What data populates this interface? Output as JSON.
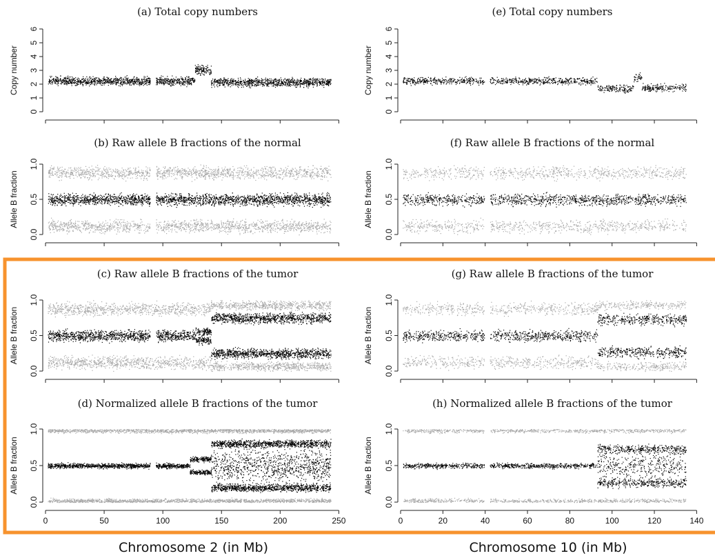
{
  "figure_colors": {
    "highlight": "#f7932e",
    "dark_points": "#000000",
    "light_points": "#a8a8a8"
  },
  "chart_data": [
    {
      "id": "a",
      "type": "scatter",
      "title": "(a) Total copy numbers",
      "ylabel": "Copy number",
      "ylim": [
        0,
        6
      ],
      "yticks": [
        "0",
        "1",
        "2",
        "3",
        "4",
        "5",
        "6"
      ],
      "xlim": [
        0,
        243
      ],
      "xticks": [],
      "highlighted": false,
      "regions": [
        {
          "x": [
            2,
            89
          ],
          "y": 2.25,
          "spread": 0.35,
          "tone": "dark"
        },
        {
          "x": [
            94,
            127
          ],
          "y": 2.25,
          "spread": 0.35,
          "tone": "dark"
        },
        {
          "x": [
            127,
            141
          ],
          "y": 3.0,
          "spread": 0.45,
          "tone": "dark"
        },
        {
          "x": [
            141,
            243
          ],
          "y": 2.15,
          "spread": 0.35,
          "tone": "dark"
        }
      ]
    },
    {
      "id": "e",
      "type": "scatter",
      "title": "(e) Total copy numbers",
      "ylabel": "Copy number",
      "ylim": [
        0,
        6
      ],
      "yticks": [
        "0",
        "1",
        "2",
        "3",
        "4",
        "5",
        "6"
      ],
      "xlim": [
        0,
        135
      ],
      "xticks": [],
      "highlighted": false,
      "gaps": [
        [
          39.5,
          42.2
        ]
      ],
      "regions": [
        {
          "x": [
            1,
            93
          ],
          "y": 2.25,
          "spread": 0.3,
          "tone": "dark"
        },
        {
          "x": [
            93,
            110
          ],
          "y": 1.7,
          "spread": 0.3,
          "tone": "dark"
        },
        {
          "x": [
            110,
            114
          ],
          "y": 2.5,
          "spread": 0.35,
          "tone": "dark"
        },
        {
          "x": [
            114,
            135
          ],
          "y": 1.75,
          "spread": 0.3,
          "tone": "dark"
        }
      ]
    },
    {
      "id": "b",
      "type": "scatter",
      "title": "(b) Raw allele B fractions of the normal",
      "ylabel": "Allele B fraction",
      "ylim": [
        0,
        1
      ],
      "yticks": [
        "0.0",
        "0.5",
        "1.0"
      ],
      "xlim": [
        0,
        243
      ],
      "xticks": [],
      "highlighted": false,
      "regions": [
        {
          "x": [
            2,
            89
          ],
          "y": 0.12,
          "spread": 0.1,
          "tone": "light"
        },
        {
          "x": [
            2,
            89
          ],
          "y": 0.88,
          "spread": 0.1,
          "tone": "light"
        },
        {
          "x": [
            2,
            89
          ],
          "y": 0.5,
          "spread": 0.09,
          "tone": "dark"
        },
        {
          "x": [
            94,
            243
          ],
          "y": 0.12,
          "spread": 0.1,
          "tone": "light"
        },
        {
          "x": [
            94,
            243
          ],
          "y": 0.88,
          "spread": 0.1,
          "tone": "light"
        },
        {
          "x": [
            94,
            243
          ],
          "y": 0.5,
          "spread": 0.09,
          "tone": "dark"
        }
      ]
    },
    {
      "id": "f",
      "type": "scatter",
      "title": "(f) Raw allele B fractions of the normal",
      "ylabel": "Allele B fraction",
      "ylim": [
        0,
        1
      ],
      "yticks": [
        "0.0",
        "0.5",
        "1.0"
      ],
      "xlim": [
        0,
        135
      ],
      "xticks": [],
      "highlighted": false,
      "gaps": [
        [
          39.5,
          42.2
        ]
      ],
      "regions": [
        {
          "x": [
            1,
            135
          ],
          "y": 0.12,
          "spread": 0.1,
          "tone": "light"
        },
        {
          "x": [
            1,
            135
          ],
          "y": 0.88,
          "spread": 0.1,
          "tone": "light"
        },
        {
          "x": [
            1,
            135
          ],
          "y": 0.5,
          "spread": 0.09,
          "tone": "dark"
        }
      ]
    },
    {
      "id": "c",
      "type": "scatter",
      "title": "(c) Raw allele B fractions of the tumor",
      "ylabel": "Allele B fraction",
      "ylim": [
        0,
        1
      ],
      "yticks": [
        "0.0",
        "0.5",
        "1.0"
      ],
      "xlim": [
        0,
        243
      ],
      "xticks": [],
      "highlighted": true,
      "regions": [
        {
          "x": [
            2,
            141
          ],
          "y": 0.12,
          "spread": 0.1,
          "tone": "light"
        },
        {
          "x": [
            2,
            141
          ],
          "y": 0.88,
          "spread": 0.1,
          "tone": "light"
        },
        {
          "x": [
            2,
            89
          ],
          "y": 0.5,
          "spread": 0.09,
          "tone": "dark"
        },
        {
          "x": [
            94,
            128
          ],
          "y": 0.5,
          "spread": 0.09,
          "tone": "dark"
        },
        {
          "x": [
            128,
            141
          ],
          "y": 0.44,
          "spread": 0.06,
          "tone": "dark"
        },
        {
          "x": [
            128,
            141
          ],
          "y": 0.56,
          "spread": 0.06,
          "tone": "dark"
        },
        {
          "x": [
            141,
            243
          ],
          "y": 0.07,
          "spread": 0.07,
          "tone": "light"
        },
        {
          "x": [
            141,
            243
          ],
          "y": 0.93,
          "spread": 0.07,
          "tone": "light"
        },
        {
          "x": [
            141,
            243
          ],
          "y": 0.25,
          "spread": 0.08,
          "tone": "dark"
        },
        {
          "x": [
            141,
            243
          ],
          "y": 0.75,
          "spread": 0.08,
          "tone": "dark"
        }
      ]
    },
    {
      "id": "g",
      "type": "scatter",
      "title": "(g) Raw allele B fractions of the tumor",
      "ylabel": "Allele B fraction",
      "ylim": [
        0,
        1
      ],
      "yticks": [
        "0.0",
        "0.5",
        "1.0"
      ],
      "xlim": [
        0,
        135
      ],
      "xticks": [],
      "highlighted": true,
      "gaps": [
        [
          39.5,
          42.2
        ]
      ],
      "regions": [
        {
          "x": [
            1,
            93
          ],
          "y": 0.12,
          "spread": 0.1,
          "tone": "light"
        },
        {
          "x": [
            1,
            93
          ],
          "y": 0.88,
          "spread": 0.1,
          "tone": "light"
        },
        {
          "x": [
            1,
            93
          ],
          "y": 0.5,
          "spread": 0.09,
          "tone": "dark"
        },
        {
          "x": [
            93,
            135
          ],
          "y": 0.07,
          "spread": 0.07,
          "tone": "light"
        },
        {
          "x": [
            93,
            135
          ],
          "y": 0.93,
          "spread": 0.07,
          "tone": "light"
        },
        {
          "x": [
            93,
            135
          ],
          "y": 0.27,
          "spread": 0.09,
          "tone": "dark"
        },
        {
          "x": [
            93,
            135
          ],
          "y": 0.73,
          "spread": 0.09,
          "tone": "dark"
        }
      ]
    },
    {
      "id": "d",
      "type": "scatter",
      "title": "(d) Normalized allele B fractions of the tumor",
      "ylabel": "Allele B fraction",
      "ylim": [
        0,
        1
      ],
      "yticks": [
        "0.0",
        "0.5",
        "1.0"
      ],
      "xlim": [
        0,
        250
      ],
      "xticks": [
        "0",
        "50",
        "100",
        "150",
        "200",
        "250"
      ],
      "xtick_values": [
        0,
        50,
        100,
        150,
        200,
        250
      ],
      "highlighted": true,
      "xtitle": "Chromosome 2 (in Mb)",
      "regions": [
        {
          "x": [
            2,
            243
          ],
          "y": 0.02,
          "spread": 0.035,
          "tone": "light"
        },
        {
          "x": [
            2,
            243
          ],
          "y": 0.98,
          "spread": 0.035,
          "tone": "light"
        },
        {
          "x": [
            2,
            89
          ],
          "y": 0.5,
          "spread": 0.04,
          "tone": "dark"
        },
        {
          "x": [
            94,
            123
          ],
          "y": 0.5,
          "spread": 0.04,
          "tone": "dark"
        },
        {
          "x": [
            123,
            141
          ],
          "y": 0.41,
          "spread": 0.04,
          "tone": "dark"
        },
        {
          "x": [
            123,
            141
          ],
          "y": 0.59,
          "spread": 0.04,
          "tone": "dark"
        },
        {
          "x": [
            141,
            243
          ],
          "y": 0.2,
          "spread": 0.06,
          "tone": "dark"
        },
        {
          "x": [
            141,
            243
          ],
          "y": 0.8,
          "spread": 0.06,
          "tone": "dark"
        },
        {
          "x": [
            141,
            243
          ],
          "y": 0.5,
          "spread": 0.25,
          "tone": "dark"
        }
      ]
    },
    {
      "id": "h",
      "type": "scatter",
      "title": "(h) Normalized allele B fractions of the tumor",
      "ylabel": "Allele B fraction",
      "ylim": [
        0,
        1
      ],
      "yticks": [
        "0.0",
        "0.5",
        "1.0"
      ],
      "xlim": [
        0,
        140
      ],
      "xticks": [
        "0",
        "20",
        "40",
        "60",
        "80",
        "100",
        "120",
        "140"
      ],
      "xtick_values": [
        0,
        20,
        40,
        60,
        80,
        100,
        120,
        140
      ],
      "highlighted": true,
      "xtitle": "Chromosome 10 (in Mb)",
      "gaps": [
        [
          39.5,
          42.2
        ]
      ],
      "regions": [
        {
          "x": [
            1,
            135
          ],
          "y": 0.02,
          "spread": 0.035,
          "tone": "light"
        },
        {
          "x": [
            1,
            135
          ],
          "y": 0.98,
          "spread": 0.035,
          "tone": "light"
        },
        {
          "x": [
            1,
            93
          ],
          "y": 0.5,
          "spread": 0.04,
          "tone": "dark"
        },
        {
          "x": [
            93,
            135
          ],
          "y": 0.27,
          "spread": 0.07,
          "tone": "dark"
        },
        {
          "x": [
            93,
            135
          ],
          "y": 0.73,
          "spread": 0.07,
          "tone": "dark"
        },
        {
          "x": [
            93,
            135
          ],
          "y": 0.5,
          "spread": 0.2,
          "tone": "dark"
        }
      ]
    }
  ]
}
